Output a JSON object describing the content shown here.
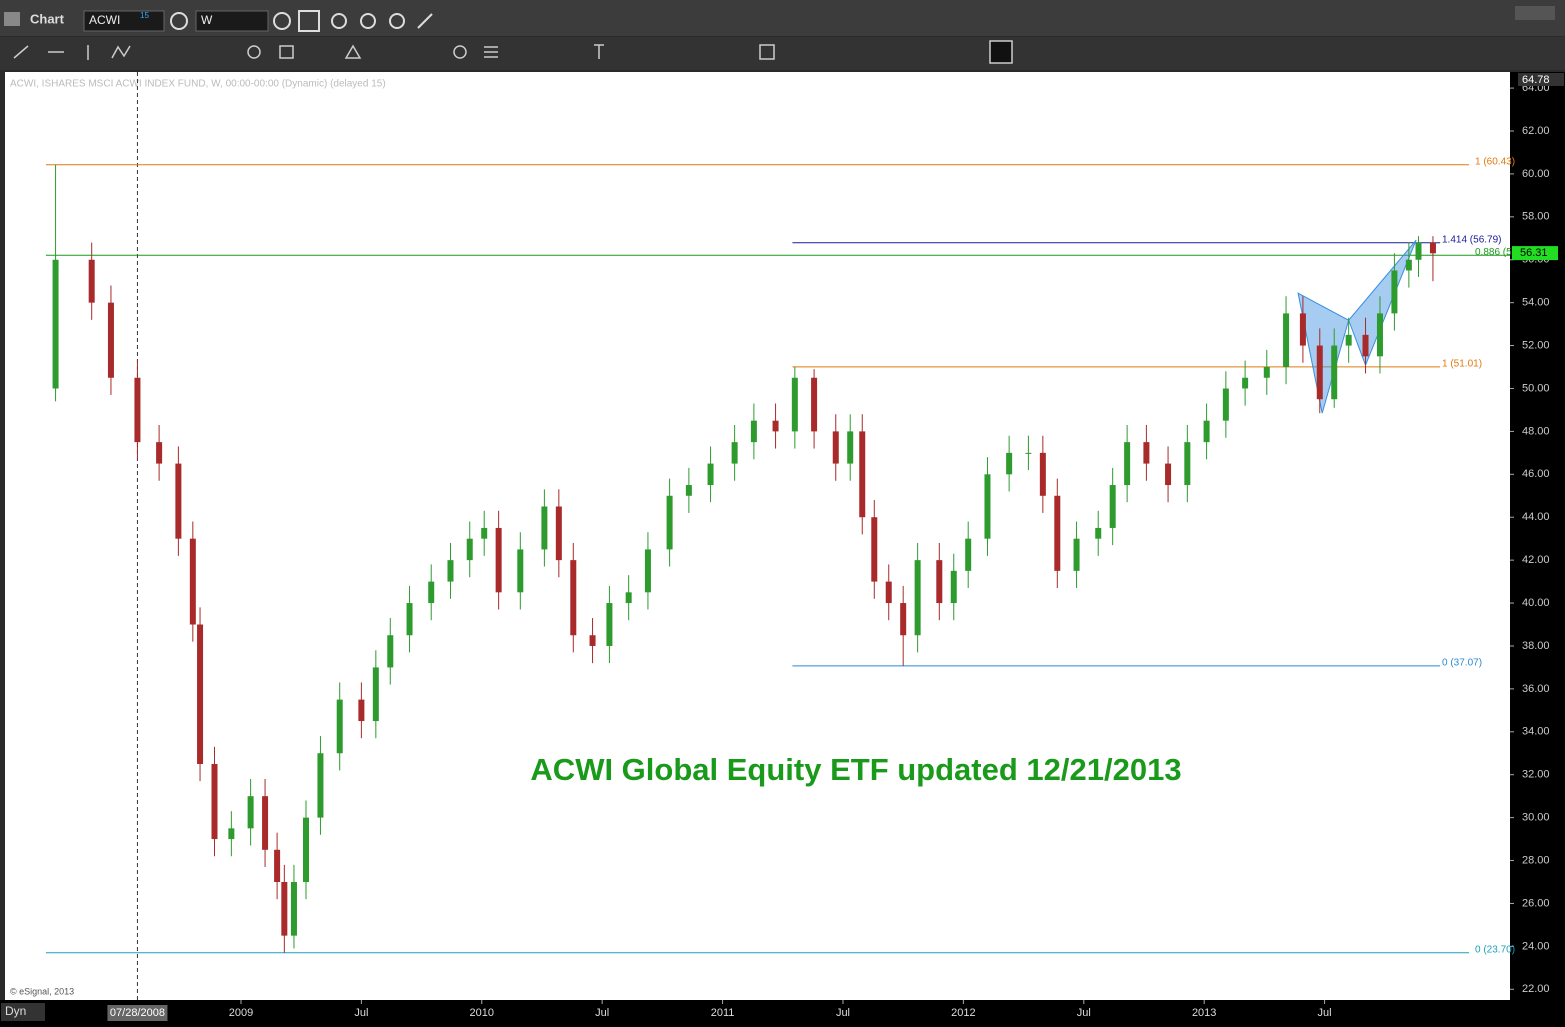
{
  "app": {
    "window_title": "Chart",
    "symbol": "ACWI",
    "symbol_badge": "15",
    "interval": "W",
    "mode": "Dyn"
  },
  "chart_data": {
    "type": "candlestick",
    "title": "ACWI Global Equity ETF updated 12/21/2013",
    "subtitle": "ACWI, ISHARES MSCI ACWI INDEX FUND, W, 00:00-00:00 (Dynamic) (delayed 15)",
    "credit": "© eSignal, 2013",
    "x": [
      2008.23,
      2008.38,
      2008.46,
      2008.57,
      2008.66,
      2008.74,
      2008.8,
      2008.83,
      2008.89,
      2008.96,
      2009.04,
      2009.1,
      2009.15,
      2009.18,
      2009.22,
      2009.27,
      2009.33,
      2009.41,
      2009.5,
      2009.56,
      2009.62,
      2009.7,
      2009.79,
      2009.87,
      2009.95,
      2010.01,
      2010.07,
      2010.16,
      2010.26,
      2010.32,
      2010.38,
      2010.46,
      2010.53,
      2010.61,
      2010.69,
      2010.78,
      2010.86,
      2010.95,
      2011.05,
      2011.13,
      2011.22,
      2011.3,
      2011.38,
      2011.47,
      2011.53,
      2011.58,
      2011.63,
      2011.69,
      2011.75,
      2011.81,
      2011.9,
      2011.96,
      2012.02,
      2012.1,
      2012.19,
      2012.27,
      2012.33,
      2012.39,
      2012.47,
      2012.56,
      2012.62,
      2012.68,
      2012.76,
      2012.85,
      2012.93,
      2013.01,
      2013.09,
      2013.17,
      2013.26,
      2013.34,
      2013.41,
      2013.48,
      2013.54,
      2013.6,
      2013.67,
      2013.73,
      2013.79,
      2013.85,
      2013.89,
      2013.95
    ],
    "open": [
      50,
      56,
      54,
      50.5,
      47.5,
      46.5,
      43,
      39,
      32.5,
      29,
      29.5,
      31,
      28.5,
      27,
      24.5,
      27,
      30,
      33,
      35.5,
      34.5,
      37,
      38.5,
      40,
      41,
      42,
      43,
      43.5,
      40.5,
      42.5,
      44.5,
      42,
      38.5,
      38,
      40,
      40.5,
      42.5,
      45,
      45.5,
      46.5,
      47.5,
      48.5,
      48,
      50.5,
      48,
      46.5,
      48,
      44,
      41,
      40,
      38.5,
      42,
      40,
      41.5,
      43,
      46,
      47,
      47,
      45,
      41.5,
      43,
      43.5,
      45.5,
      47.5,
      46.5,
      45.5,
      47.5,
      48.5,
      50,
      50.5,
      51,
      53.5,
      52,
      49.5,
      52,
      52.5,
      51.5,
      53.5,
      55.5,
      56,
      56.8
    ],
    "high": [
      60.43,
      56.8,
      54.8,
      51.3,
      48.3,
      47.3,
      43.8,
      39.8,
      33.3,
      30.3,
      31.8,
      31.8,
      29.3,
      27.8,
      27.8,
      30.8,
      33.8,
      36.3,
      36.3,
      37.8,
      39.3,
      40.8,
      41.8,
      42.8,
      43.8,
      44.3,
      44.3,
      43.3,
      45.3,
      45.3,
      42.8,
      39.3,
      40.8,
      41.3,
      43.3,
      45.8,
      46.3,
      47.3,
      48.3,
      49.3,
      49.3,
      51.01,
      50.9,
      48.8,
      48.8,
      48.8,
      44.8,
      41.8,
      40.8,
      42.8,
      42.8,
      42.3,
      43.8,
      46.8,
      47.8,
      47.8,
      47.8,
      45.8,
      43.8,
      44.3,
      46.3,
      48.3,
      48.3,
      47.3,
      48.3,
      49.3,
      50.8,
      51.3,
      51.8,
      54.3,
      54.3,
      52.8,
      52.8,
      53.3,
      53.3,
      54.3,
      56.3,
      56.8,
      57.1,
      57.1
    ],
    "low": [
      49.4,
      53.2,
      49.7,
      46.7,
      45.7,
      42.2,
      38.2,
      31.7,
      28.2,
      28.2,
      28.7,
      27.7,
      26.2,
      23.7,
      23.9,
      26.2,
      29.2,
      32.2,
      33.7,
      33.7,
      36.2,
      37.7,
      39.2,
      40.2,
      41.2,
      42.2,
      39.7,
      39.7,
      41.7,
      41.2,
      37.7,
      37.2,
      37.2,
      39.2,
      39.7,
      41.7,
      44.2,
      44.7,
      45.7,
      46.7,
      47.2,
      47.2,
      47.2,
      45.7,
      45.7,
      43.2,
      40.2,
      39.2,
      37.07,
      37.7,
      39.2,
      39.2,
      40.7,
      42.2,
      45.2,
      46.2,
      44.2,
      40.7,
      40.7,
      42.2,
      42.7,
      44.7,
      45.7,
      44.7,
      44.7,
      46.7,
      47.7,
      49.2,
      49.7,
      50.2,
      51.2,
      48.85,
      49.1,
      51.2,
      50.7,
      50.7,
      52.7,
      54.7,
      55.2,
      55
    ],
    "close": [
      56,
      54,
      50.5,
      47.5,
      46.5,
      43,
      39,
      32.5,
      29,
      29.5,
      31,
      28.5,
      27,
      24.5,
      27,
      30,
      33,
      35.5,
      34.5,
      37,
      38.5,
      40,
      41,
      42,
      43,
      43.5,
      40.5,
      42.5,
      44.5,
      42,
      38.5,
      38,
      40,
      40.5,
      42.5,
      45,
      45.5,
      46.5,
      47.5,
      48.5,
      48,
      50.5,
      48,
      46.5,
      48,
      44,
      41,
      40,
      38.5,
      42,
      40,
      41.5,
      43,
      46,
      47,
      47,
      45,
      41.5,
      43,
      43.5,
      45.5,
      47.5,
      46.5,
      45.5,
      47.5,
      48.5,
      50,
      50.5,
      51,
      53.5,
      52,
      49.5,
      52,
      52.5,
      51.5,
      53.5,
      55.5,
      56,
      56.8,
      56.3
    ],
    "up_color": "#2e9b2e",
    "down_color": "#a82a2a",
    "xlim": [
      2008.02,
      2014.27
    ],
    "xticks": [
      2009,
      {
        "value": 2009.5,
        "label": "Jul"
      },
      2010,
      {
        "value": 2010.5,
        "label": "Jul"
      },
      2011,
      {
        "value": 2011.5,
        "label": "Jul"
      },
      2012,
      {
        "value": 2012.5,
        "label": "Jul"
      },
      2013,
      {
        "value": 2013.5,
        "label": "Jul"
      }
    ],
    "cursor": {
      "value": 2008.57,
      "label": "07/28/2008"
    },
    "ylim": [
      21.5,
      64.75
    ],
    "yticks": [
      {
        "value": 22,
        "label": "22.00"
      },
      {
        "value": 24,
        "label": "24.00"
      },
      {
        "value": 26,
        "label": "26.00"
      },
      {
        "value": 28,
        "label": "28.00"
      },
      {
        "value": 30,
        "label": "30.00"
      },
      {
        "value": 32,
        "label": "32.00"
      },
      {
        "value": 34,
        "label": "34.00"
      },
      {
        "value": 36,
        "label": "36.00"
      },
      {
        "value": 38,
        "label": "38.00"
      },
      {
        "value": 40,
        "label": "40.00"
      },
      {
        "value": 42,
        "label": "42.00"
      },
      {
        "value": 44,
        "label": "44.00"
      },
      {
        "value": 46,
        "label": "46.00"
      },
      {
        "value": 48,
        "label": "48.00"
      },
      {
        "value": 50,
        "label": "50.00"
      },
      {
        "value": 52,
        "label": "52.00"
      },
      {
        "value": 54,
        "label": "54.00"
      },
      {
        "value": 56,
        "label": "56.00"
      },
      {
        "value": 58,
        "label": "58.00"
      },
      {
        "value": 60,
        "label": "60.00"
      },
      {
        "value": 62,
        "label": "62.00"
      },
      {
        "value": 64,
        "label": "64.00"
      }
    ],
    "axis_top": {
      "value": 64.78,
      "label": "64.78"
    },
    "last_price": {
      "value": 56.31,
      "label": "56.31",
      "color": "#22dd22"
    },
    "levels": [
      {
        "label": "1 (60.43)",
        "value": 60.43,
        "color": "#e07a10",
        "x": [
          2008.19,
          2014.1
        ]
      },
      {
        "label": "0.886 (56",
        "value": 56.21,
        "color": "#1a9a1a",
        "x": [
          2008.19,
          2014.27
        ]
      },
      {
        "label": "0 (23.70)",
        "value": 23.7,
        "color": "#1aa0b8",
        "x": [
          2008.19,
          2014.1
        ]
      },
      {
        "label": "1.414 (56.79)",
        "value": 56.79,
        "color": "#1a1a9a",
        "x": [
          2011.29,
          2013.98
        ]
      },
      {
        "label": "1 (51.01)",
        "value": 51.01,
        "color": "#e07a10",
        "x": [
          2011.29,
          2013.98
        ]
      },
      {
        "label": "0 (37.07)",
        "value": 37.07,
        "color": "#2a8ad0",
        "x": [
          2011.29,
          2013.98
        ]
      }
    ],
    "pattern": {
      "color": "#3a8ee0",
      "x": [
        2013.39,
        2013.49,
        2013.6,
        2013.67,
        2013.88
      ],
      "y": [
        54.44,
        48.85,
        53.18,
        51.09,
        56.91
      ]
    },
    "grid": false
  }
}
